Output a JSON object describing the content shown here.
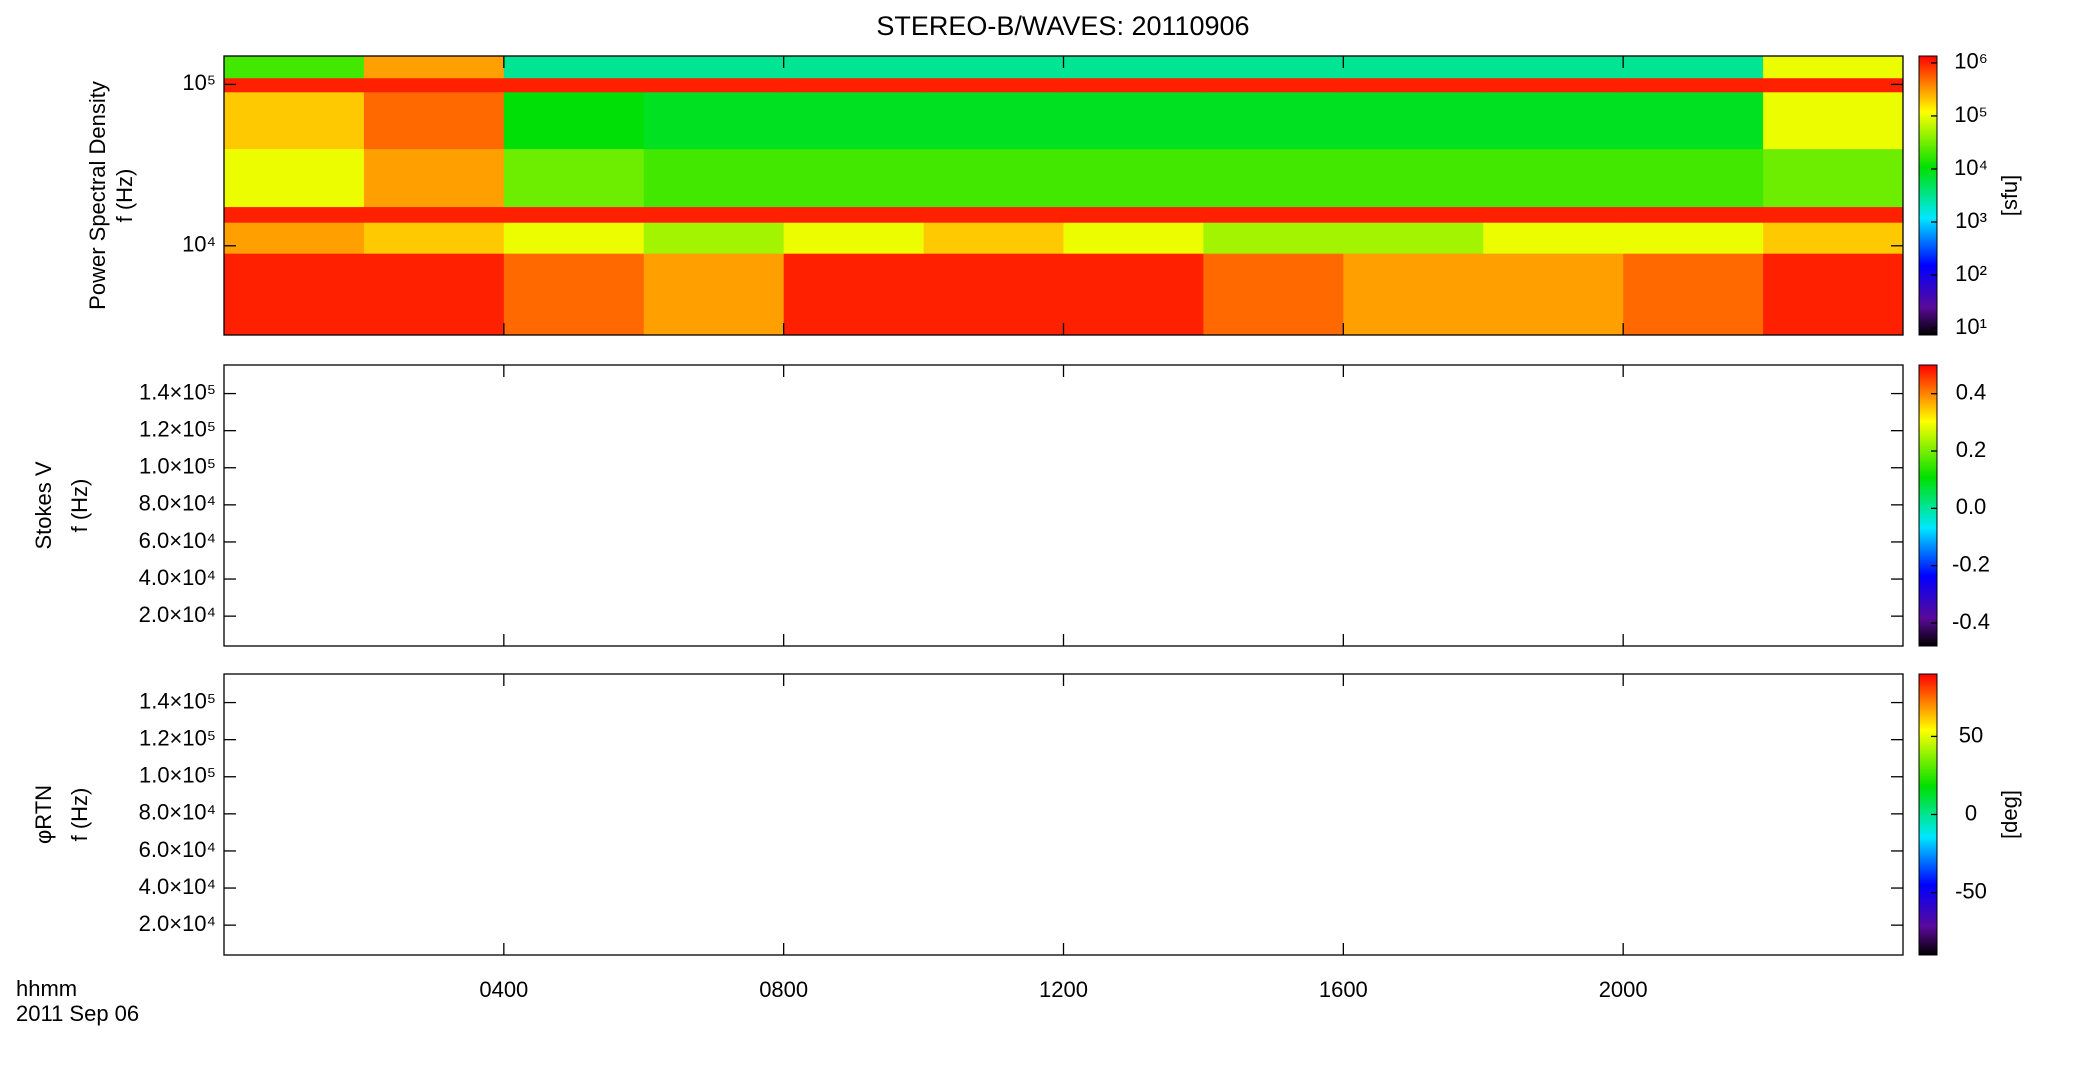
{
  "title": "STEREO-B/WAVES: 20110906",
  "x_label": "hhmm",
  "date_label": "2011 Sep 06",
  "xlim": [
    0,
    24
  ],
  "xticks": [
    {
      "value": 4,
      "label": "0400"
    },
    {
      "value": 8,
      "label": "0800"
    },
    {
      "value": 12,
      "label": "1200"
    },
    {
      "value": 16,
      "label": "1600"
    },
    {
      "value": 20,
      "label": "2000"
    }
  ],
  "chart_data": [
    {
      "type": "heatmap",
      "ylabel": [
        "Power Spectral Density",
        "f (Hz)"
      ],
      "ylog": true,
      "ylim": [
        2800,
        150000
      ],
      "yticks": [
        {
          "value": 10000,
          "label": "10⁴"
        },
        {
          "value": 100000,
          "label": "10⁵"
        }
      ],
      "x_bins": [
        0,
        2,
        4,
        6,
        8,
        10,
        12,
        14,
        16,
        18,
        20,
        22,
        24
      ],
      "y_bins": [
        2800,
        9000,
        14000,
        17500,
        40000,
        90000,
        110000,
        150000
      ],
      "z": [
        [
          1000000,
          1000000,
          500000,
          300000,
          1000000,
          1000000,
          1000000,
          500000,
          300000,
          300000,
          500000,
          1000000
        ],
        [
          300000,
          200000,
          100000,
          50000,
          100000,
          200000,
          100000,
          50000,
          50000,
          100000,
          100000,
          200000
        ],
        [
          1000000,
          1000000,
          1000000,
          1000000,
          1000000,
          1000000,
          1000000,
          1000000,
          1000000,
          1000000,
          1000000,
          1000000
        ],
        [
          100000,
          300000,
          30000,
          20000,
          20000,
          20000,
          20000,
          20000,
          20000,
          20000,
          20000,
          30000
        ],
        [
          200000,
          500000,
          10000,
          8000,
          8000,
          8000,
          8000,
          8000,
          8000,
          8000,
          8000,
          100000
        ],
        [
          1000000,
          1000000,
          1000000,
          1000000,
          1000000,
          1000000,
          1000000,
          1000000,
          1000000,
          1000000,
          1000000,
          1000000
        ],
        [
          20000,
          300000,
          3000,
          3000,
          3000,
          3000,
          3000,
          3000,
          3000,
          3000,
          3000,
          100000
        ]
      ],
      "colorbar": {
        "label": "[sfu]",
        "log": true,
        "lim": [
          7.4,
          1350000
        ],
        "ticks": [
          {
            "value": 10,
            "label": "10¹"
          },
          {
            "value": 100,
            "label": "10²"
          },
          {
            "value": 1000,
            "label": "10³"
          },
          {
            "value": 10000,
            "label": "10⁴"
          },
          {
            "value": 100000,
            "label": "10⁵"
          },
          {
            "value": 1000000,
            "label": "10⁶"
          }
        ]
      }
    },
    {
      "type": "heatmap",
      "ylabel": [
        "Stokes V",
        "f (Hz)"
      ],
      "ylog": false,
      "ylim": [
        3900,
        155400
      ],
      "yticks": [
        {
          "value": 20000,
          "label": "2.0×10⁴"
        },
        {
          "value": 40000,
          "label": "4.0×10⁴"
        },
        {
          "value": 60000,
          "label": "6.0×10⁴"
        },
        {
          "value": 80000,
          "label": "8.0×10⁴"
        },
        {
          "value": 100000,
          "label": "1.0×10⁵"
        },
        {
          "value": 120000,
          "label": "1.2×10⁵"
        },
        {
          "value": 140000,
          "label": "1.4×10⁵"
        }
      ],
      "colorbar": {
        "log": false,
        "lim": [
          -0.48,
          0.5
        ],
        "ticks": [
          -0.4,
          -0.2,
          {
            "value": 0,
            "label": "0.0"
          },
          0.2,
          0.4
        ]
      }
    },
    {
      "type": "heatmap",
      "ylabel": [
        "φRTN",
        "f (Hz)"
      ],
      "ylog": false,
      "ylim": [
        3900,
        155400
      ],
      "yticks": [
        {
          "value": 20000,
          "label": "2.0×10⁴"
        },
        {
          "value": 40000,
          "label": "4.0×10⁴"
        },
        {
          "value": 60000,
          "label": "6.0×10⁴"
        },
        {
          "value": 80000,
          "label": "8.0×10⁴"
        },
        {
          "value": 100000,
          "label": "1.0×10⁵"
        },
        {
          "value": 120000,
          "label": "1.2×10⁵"
        },
        {
          "value": 140000,
          "label": "1.4×10⁵"
        }
      ],
      "colorbar": {
        "label": "[deg]",
        "log": false,
        "lim": [
          -90,
          90
        ],
        "ticks": [
          -50,
          0,
          50
        ]
      }
    }
  ]
}
